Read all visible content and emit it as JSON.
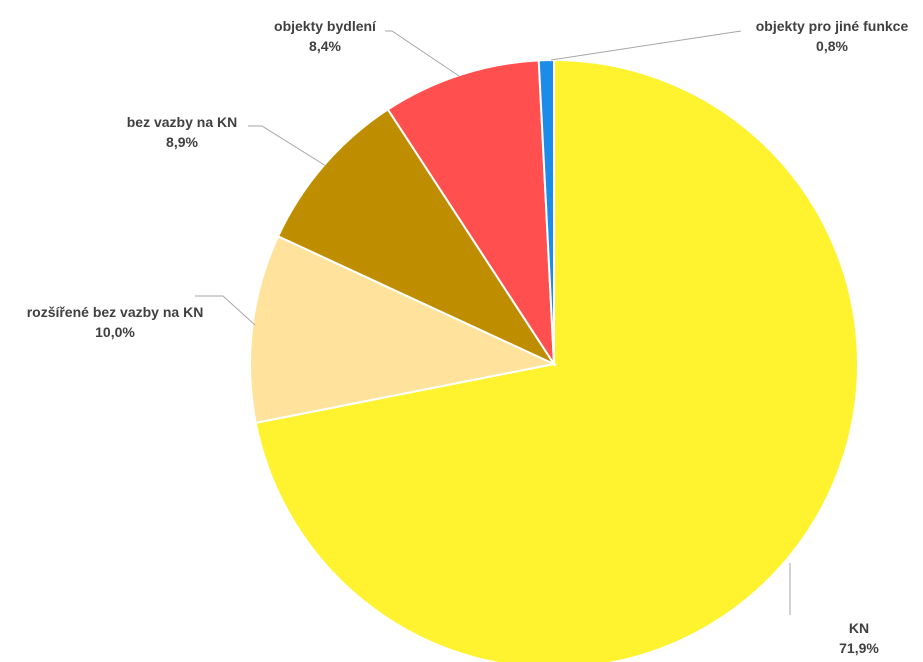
{
  "chart_data": {
    "type": "pie",
    "title": "",
    "slices": [
      {
        "label": "KN",
        "value": 71.9,
        "value_label": "71,9%",
        "color": "#FFF22E"
      },
      {
        "label": "rozšířené bez vazby na KN",
        "value": 10.0,
        "value_label": "10,0%",
        "color": "#FFE39C"
      },
      {
        "label": "bez vazby na KN",
        "value": 8.9,
        "value_label": "8,9%",
        "color": "#BF8E00"
      },
      {
        "label": "objekty bydlení",
        "value": 8.4,
        "value_label": "8,4%",
        "color": "#FF4F4F"
      },
      {
        "label": "objekty pro jiné funkce",
        "value": 0.8,
        "value_label": "0,8%",
        "color": "#1C8CE8"
      }
    ],
    "start": "12 o'clock",
    "direction": "clockwise",
    "legend": "none",
    "data_labels": "outside with leader lines"
  }
}
